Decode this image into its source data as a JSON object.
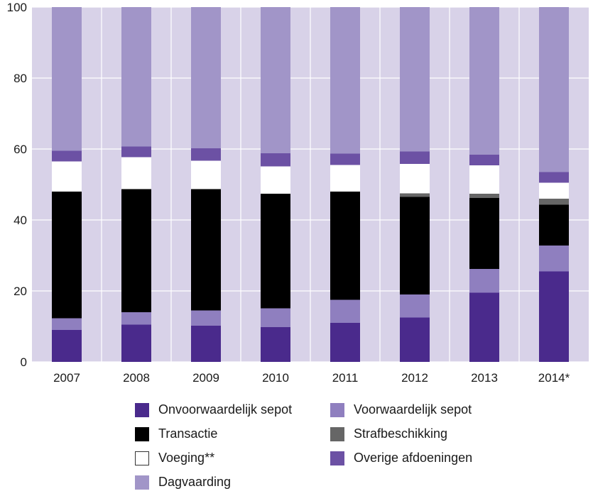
{
  "chart_data": {
    "type": "bar",
    "stacked": true,
    "categories": [
      "2007",
      "2008",
      "2009",
      "2010",
      "2011",
      "2012",
      "2013",
      "2014*"
    ],
    "series": [
      {
        "name": "Onvoorwaardelijk sepot",
        "color": "#4a2a8c",
        "values": [
          9,
          10.5,
          10.2,
          9.8,
          11,
          12.5,
          19.5,
          25.5
        ]
      },
      {
        "name": "Voorwaardelijk sepot",
        "color": "#8f7fbf",
        "values": [
          3.3,
          3.5,
          4.3,
          5.3,
          6.5,
          6.5,
          6.7,
          7.3
        ]
      },
      {
        "name": "Transactie",
        "color": "#000000",
        "values": [
          35.7,
          34.7,
          34.2,
          32.3,
          30.5,
          27.5,
          20,
          11.5
        ]
      },
      {
        "name": "Strafbeschikking",
        "color": "#666666",
        "values": [
          0,
          0,
          0,
          0,
          0,
          1,
          1.2,
          1.7
        ]
      },
      {
        "name": "Voeging**",
        "color": "#ffffff",
        "values": [
          8.5,
          9,
          8,
          7.7,
          7.5,
          8.3,
          8,
          4.5
        ]
      },
      {
        "name": "Overige afdoeningen",
        "color": "#6c51a4",
        "values": [
          3,
          3,
          3.5,
          3.7,
          3.2,
          3.5,
          3,
          3
        ]
      },
      {
        "name": "Dagvaarding",
        "color": "#a195c8",
        "values": [
          40.5,
          39.3,
          39.8,
          41.2,
          41.3,
          40.7,
          41.6,
          46.5
        ]
      }
    ],
    "ylim": [
      0,
      100
    ],
    "yticks": [
      "0",
      "20",
      "40",
      "60",
      "80",
      "100"
    ],
    "grid": true,
    "legend_position": "bottom",
    "plot_background": "#d8d2e8",
    "legend": {
      "left_column": [
        {
          "name": "Onvoorwaardelijk sepot",
          "color": "#4a2a8c"
        },
        {
          "name": "Transactie",
          "color": "#000000"
        },
        {
          "name": "Voeging**",
          "color": "#ffffff"
        },
        {
          "name": "Dagvaarding",
          "color": "#a195c8"
        }
      ],
      "right_column": [
        {
          "name": "Voorwaardelijk sepot",
          "color": "#8f7fbf"
        },
        {
          "name": "Strafbeschikking",
          "color": "#666666"
        },
        {
          "name": "Overige afdoeningen",
          "color": "#6c51a4"
        }
      ]
    }
  }
}
